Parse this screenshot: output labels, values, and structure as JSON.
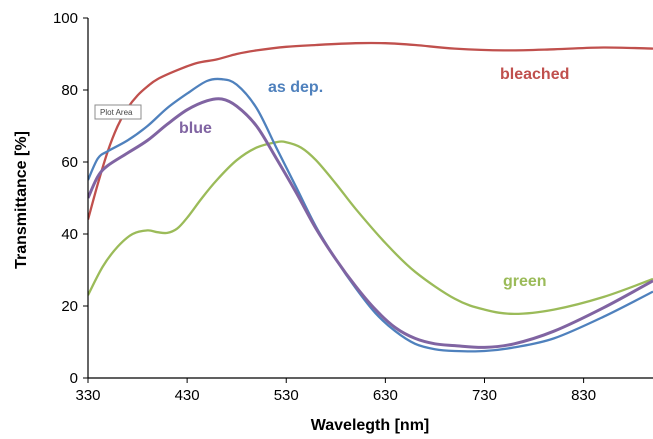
{
  "chart_data": {
    "type": "line",
    "xlabel": "Wavelegth [nm]",
    "ylabel": "Transmittance [%]",
    "xlim": [
      330,
      900
    ],
    "ylim": [
      0,
      100
    ],
    "xticks": [
      330,
      430,
      530,
      630,
      730,
      830
    ],
    "yticks": [
      0,
      20,
      40,
      60,
      80,
      100
    ],
    "grid": false,
    "legend": "inline labels",
    "tooltip": "Plot Area",
    "series": [
      {
        "name": "bleached",
        "color": "#c0504d",
        "x": [
          330,
          340,
          350,
          360,
          370,
          380,
          390,
          400,
          420,
          440,
          460,
          480,
          500,
          530,
          560,
          600,
          630,
          660,
          700,
          750,
          800,
          850,
          900
        ],
        "y": [
          44,
          54,
          63,
          70,
          75,
          78.5,
          81,
          83,
          85.5,
          87.5,
          88.5,
          90,
          91,
          92,
          92.5,
          93,
          93,
          92.5,
          91.5,
          91,
          91.3,
          91.8,
          91.5
        ]
      },
      {
        "name": "as dep.",
        "color": "#4f81bd",
        "x": [
          330,
          340,
          350,
          370,
          390,
          410,
          430,
          450,
          465,
          480,
          500,
          520,
          540,
          560,
          580,
          600,
          620,
          640,
          660,
          680,
          700,
          730,
          760,
          800,
          850,
          900
        ],
        "y": [
          55,
          61,
          63,
          66,
          70,
          75,
          79,
          82.5,
          83,
          81.5,
          75,
          64,
          53,
          42,
          33,
          25,
          18,
          13,
          9.5,
          8,
          7.5,
          7.5,
          8.5,
          11,
          17,
          24
        ]
      },
      {
        "name": "blue",
        "color": "#8064a2",
        "x": [
          330,
          340,
          350,
          370,
          390,
          410,
          430,
          450,
          465,
          480,
          500,
          520,
          540,
          560,
          580,
          600,
          620,
          640,
          660,
          680,
          700,
          730,
          760,
          800,
          850,
          900
        ],
        "y": [
          50,
          56,
          59,
          62.5,
          66,
          70.5,
          74.5,
          77,
          77.5,
          75.5,
          70,
          61,
          51.5,
          41.5,
          33,
          25.5,
          19,
          14,
          11,
          9.5,
          9,
          8.5,
          9.5,
          13,
          19.5,
          27
        ]
      },
      {
        "name": "green",
        "color": "#9bbb59",
        "x": [
          330,
          345,
          360,
          375,
          390,
          400,
          410,
          420,
          430,
          445,
          460,
          480,
          500,
          520,
          530,
          545,
          560,
          580,
          600,
          630,
          660,
          700,
          730,
          760,
          800,
          850,
          900
        ],
        "y": [
          23,
          31,
          36.5,
          40,
          41,
          40.5,
          40.3,
          41.5,
          44.5,
          50,
          55,
          60.5,
          64,
          65.5,
          65.5,
          64,
          60.5,
          54,
          47,
          37.5,
          29.5,
          22,
          19,
          17.8,
          19,
          22.5,
          27.5
        ]
      }
    ]
  }
}
